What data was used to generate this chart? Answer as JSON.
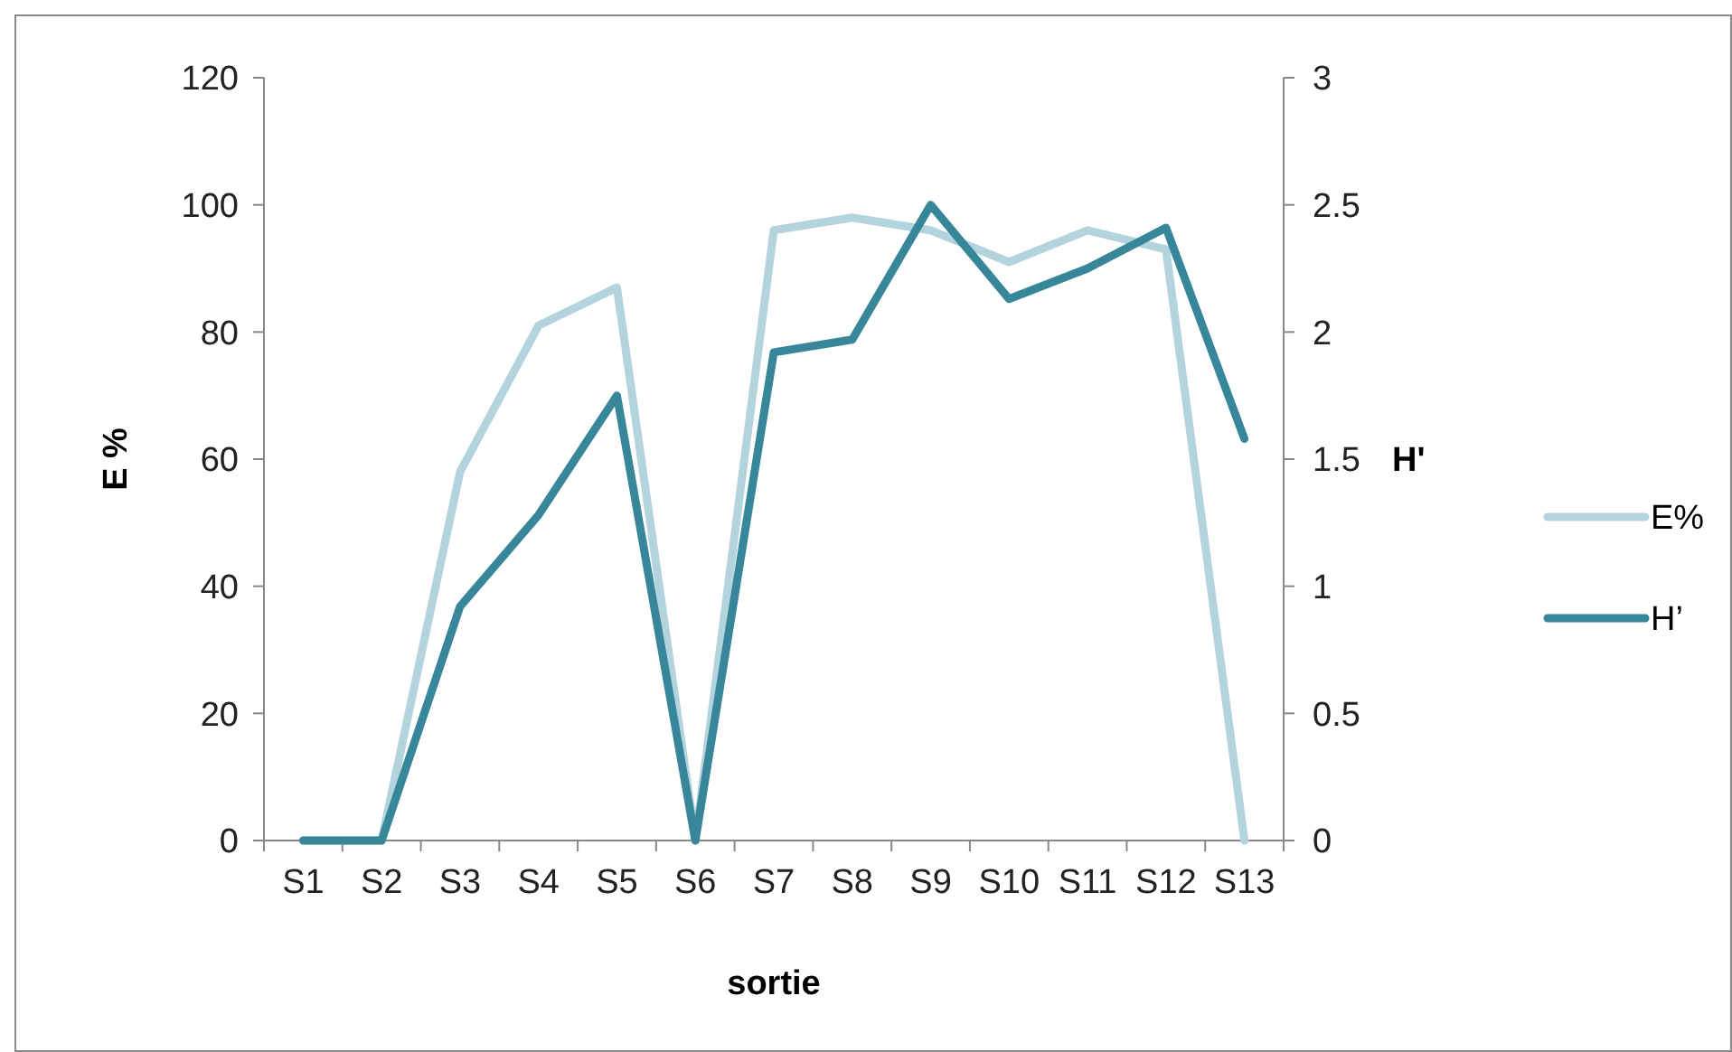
{
  "chart_data": {
    "type": "line",
    "xlabel": "sortie",
    "ylabel": "E %",
    "y2label": "H'",
    "categories": [
      "S1",
      "S2",
      "S3",
      "S4",
      "S5",
      "S6",
      "S7",
      "S8",
      "S9",
      "S10",
      "S11",
      "S12",
      "S13"
    ],
    "series": [
      {
        "name": "E%",
        "color": "#b3d3dd",
        "values": [
          0,
          0,
          58,
          81,
          87,
          0,
          96,
          98,
          96,
          91,
          96,
          93,
          0
        ]
      },
      {
        "name": "H’",
        "color": "#37869a",
        "axis": "y2",
        "values": [
          0,
          0,
          0.92,
          1.28,
          1.75,
          0,
          1.92,
          1.97,
          2.5,
          2.13,
          2.25,
          2.41,
          1.58
        ]
      }
    ],
    "ylim": [
      0,
      120
    ],
    "yticks": [
      0,
      20,
      40,
      60,
      80,
      100,
      120
    ],
    "y2lim": [
      0,
      3
    ],
    "y2ticks": [
      0,
      0.5,
      1,
      1.5,
      2,
      2.5,
      3
    ],
    "legend": "right",
    "grid": false,
    "marker": "none",
    "line_style": "solid"
  }
}
